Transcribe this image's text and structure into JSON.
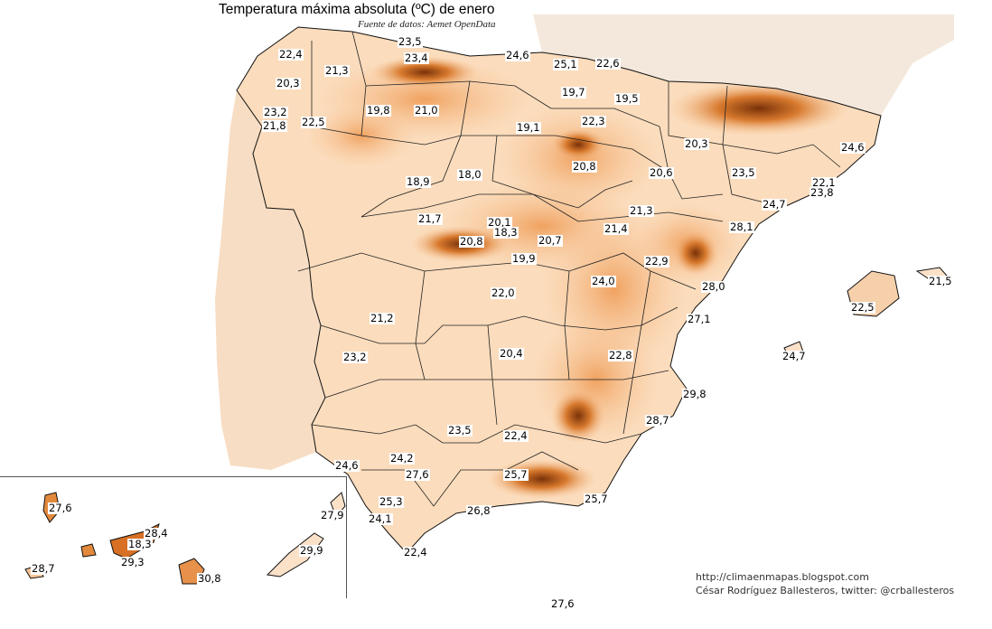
{
  "title": "Temperatura máxima absoluta (ºC) de enero",
  "subtitle": "Fuente de datos: Aemet OpenData",
  "credits": {
    "blog": "http://climaenmapas.blogspot.com",
    "author": "César Rodríguez Ballesteros, twitter: @crballesteros"
  },
  "colors": {
    "land_light": "#fde9d6",
    "land_mid": "#f8c79a",
    "land_dark": "#e9893f",
    "mountain": "#8a3a0a",
    "border": "#1a1a1a"
  },
  "labels": [
    {
      "id": "l01",
      "value": "23,5"
    },
    {
      "id": "l02",
      "value": "22,4"
    },
    {
      "id": "l03",
      "value": "23,4"
    },
    {
      "id": "l04",
      "value": "24,6"
    },
    {
      "id": "l05",
      "value": "25,1"
    },
    {
      "id": "l06",
      "value": "22,6"
    },
    {
      "id": "l07",
      "value": "21,3"
    },
    {
      "id": "l08",
      "value": "20,3"
    },
    {
      "id": "l09",
      "value": "19,7"
    },
    {
      "id": "l10",
      "value": "19,5"
    },
    {
      "id": "l11",
      "value": "23,2"
    },
    {
      "id": "l12",
      "value": "19,8"
    },
    {
      "id": "l13",
      "value": "21,0"
    },
    {
      "id": "l14",
      "value": "22,5"
    },
    {
      "id": "l15",
      "value": "21,8"
    },
    {
      "id": "l16",
      "value": "19,1"
    },
    {
      "id": "l17",
      "value": "22,3"
    },
    {
      "id": "l18",
      "value": "20,3"
    },
    {
      "id": "l19",
      "value": "24,6"
    },
    {
      "id": "l20",
      "value": "20,8"
    },
    {
      "id": "l21",
      "value": "18,0"
    },
    {
      "id": "l22",
      "value": "18,9"
    },
    {
      "id": "l23",
      "value": "20,6"
    },
    {
      "id": "l24",
      "value": "23,5"
    },
    {
      "id": "l25",
      "value": "22,1"
    },
    {
      "id": "l26",
      "value": "23,8"
    },
    {
      "id": "l27",
      "value": "24,7"
    },
    {
      "id": "l28",
      "value": "21,7"
    },
    {
      "id": "l29",
      "value": "20,1"
    },
    {
      "id": "l30",
      "value": "21,3"
    },
    {
      "id": "l31",
      "value": "18,3"
    },
    {
      "id": "l32",
      "value": "20,8"
    },
    {
      "id": "l33",
      "value": "21,4"
    },
    {
      "id": "l34",
      "value": "28,1"
    },
    {
      "id": "l35",
      "value": "20,7"
    },
    {
      "id": "l36",
      "value": "19,9"
    },
    {
      "id": "l37",
      "value": "22,9"
    },
    {
      "id": "l38",
      "value": "21,5"
    },
    {
      "id": "l39",
      "value": "22,0"
    },
    {
      "id": "l40",
      "value": "24,0"
    },
    {
      "id": "l41",
      "value": "28,0"
    },
    {
      "id": "l42",
      "value": "22,5"
    },
    {
      "id": "l43",
      "value": "21,2"
    },
    {
      "id": "l44",
      "value": "27,1"
    },
    {
      "id": "l45",
      "value": "23,2"
    },
    {
      "id": "l46",
      "value": "20,4"
    },
    {
      "id": "l47",
      "value": "22,8"
    },
    {
      "id": "l48",
      "value": "24,7"
    },
    {
      "id": "l49",
      "value": "29,8"
    },
    {
      "id": "l50",
      "value": "28,7"
    },
    {
      "id": "l51",
      "value": "23,5"
    },
    {
      "id": "l52",
      "value": "22,4"
    },
    {
      "id": "l53",
      "value": "24,2"
    },
    {
      "id": "l54",
      "value": "24,6"
    },
    {
      "id": "l55",
      "value": "27,6"
    },
    {
      "id": "l56",
      "value": "25,7"
    },
    {
      "id": "l57",
      "value": "25,3"
    },
    {
      "id": "l58",
      "value": "25,7"
    },
    {
      "id": "l59",
      "value": "24,1"
    },
    {
      "id": "l60",
      "value": "26,8"
    },
    {
      "id": "l61",
      "value": "22,4"
    },
    {
      "id": "l62",
      "value": "27,6"
    },
    {
      "id": "l63",
      "value": "27,9"
    },
    {
      "id": "l64",
      "value": "28,4"
    },
    {
      "id": "l65",
      "value": "18,3"
    },
    {
      "id": "l66",
      "value": "29,3"
    },
    {
      "id": "l67",
      "value": "29,9"
    },
    {
      "id": "l68",
      "value": "28,7"
    },
    {
      "id": "l69",
      "value": "30,8"
    },
    {
      "id": "l70",
      "value": "27,6"
    }
  ]
}
